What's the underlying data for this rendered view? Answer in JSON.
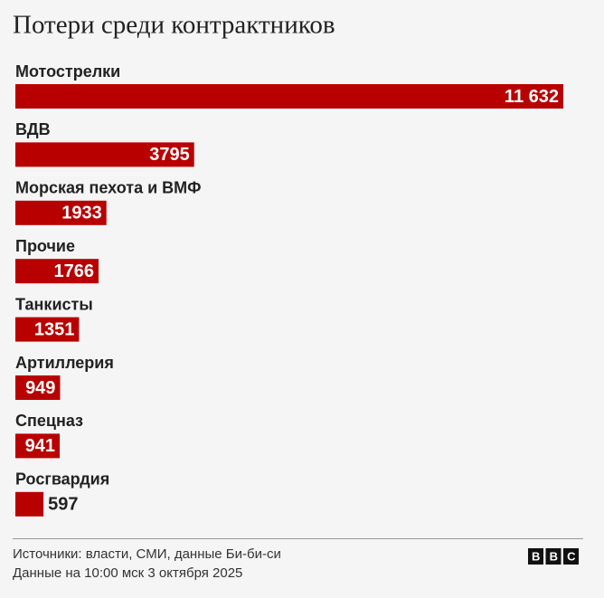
{
  "chart_data": {
    "type": "bar",
    "orientation": "horizontal",
    "title": "Потери среди контрактников",
    "categories": [
      "Мотострелки",
      "ВДВ",
      "Морская пехота и ВМФ",
      "Прочие",
      "Танкисты",
      "Артиллерия",
      "Спецназ",
      "Росгвардия"
    ],
    "values": [
      11632,
      3795,
      1933,
      1766,
      1351,
      949,
      941,
      597
    ],
    "value_labels": [
      "11 632",
      "3795",
      "1933",
      "1766",
      "1351",
      "949",
      "941",
      "597"
    ],
    "color": "#b80000",
    "source": "Источники: власти, СМИ, данные Би-би-си",
    "note": "Данные на 10:00 мск 3 октября 2025",
    "logo": "BBC"
  }
}
